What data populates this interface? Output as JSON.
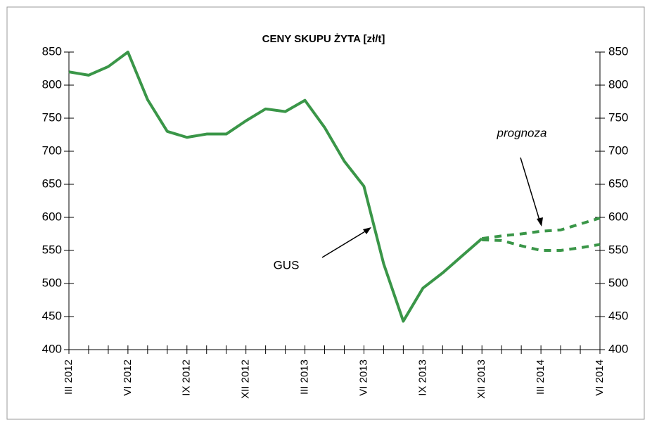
{
  "chart_data": {
    "type": "line",
    "title": "CENY SKUPU ŻYTA [zł/t]",
    "categories": [
      "III 2012",
      null,
      null,
      "VI 2012",
      null,
      null,
      "IX 2012",
      null,
      null,
      "XII 2012",
      null,
      null,
      "III 2013",
      null,
      null,
      "VI 2013",
      null,
      null,
      "IX 2013",
      null,
      null,
      "XII 2013",
      null,
      null,
      "III 2014",
      null,
      null,
      "VI 2014"
    ],
    "series": [
      {
        "color": "#3a9648",
        "style": "solid",
        "values": [
          820,
          815,
          828,
          850,
          778,
          730,
          721,
          726,
          726,
          746,
          764,
          760,
          777,
          736,
          685,
          647,
          530,
          443,
          493,
          516,
          542,
          568,
          null,
          null,
          null,
          null,
          null,
          null
        ]
      },
      {
        "color": "#3a9648",
        "style": "dashed",
        "values": [
          null,
          null,
          null,
          null,
          null,
          null,
          null,
          null,
          null,
          null,
          null,
          null,
          null,
          null,
          null,
          null,
          null,
          null,
          null,
          null,
          null,
          568,
          572,
          575,
          579,
          581,
          590,
          599
        ]
      },
      {
        "color": "#3a9648",
        "style": "dashed",
        "values": [
          null,
          null,
          null,
          null,
          null,
          null,
          null,
          null,
          null,
          null,
          null,
          null,
          null,
          null,
          null,
          null,
          null,
          null,
          null,
          null,
          null,
          566,
          565,
          557,
          550,
          550,
          554,
          559
        ]
      }
    ],
    "ylim": [
      400,
      850
    ],
    "yticks": [
      400,
      450,
      500,
      550,
      600,
      650,
      700,
      750,
      800,
      850
    ],
    "y2lim": [
      400,
      850
    ],
    "y2ticks": [
      400,
      450,
      500,
      550,
      600,
      650,
      700,
      750,
      800,
      850
    ],
    "annotations": [
      "GUS",
      "prognoza"
    ]
  }
}
